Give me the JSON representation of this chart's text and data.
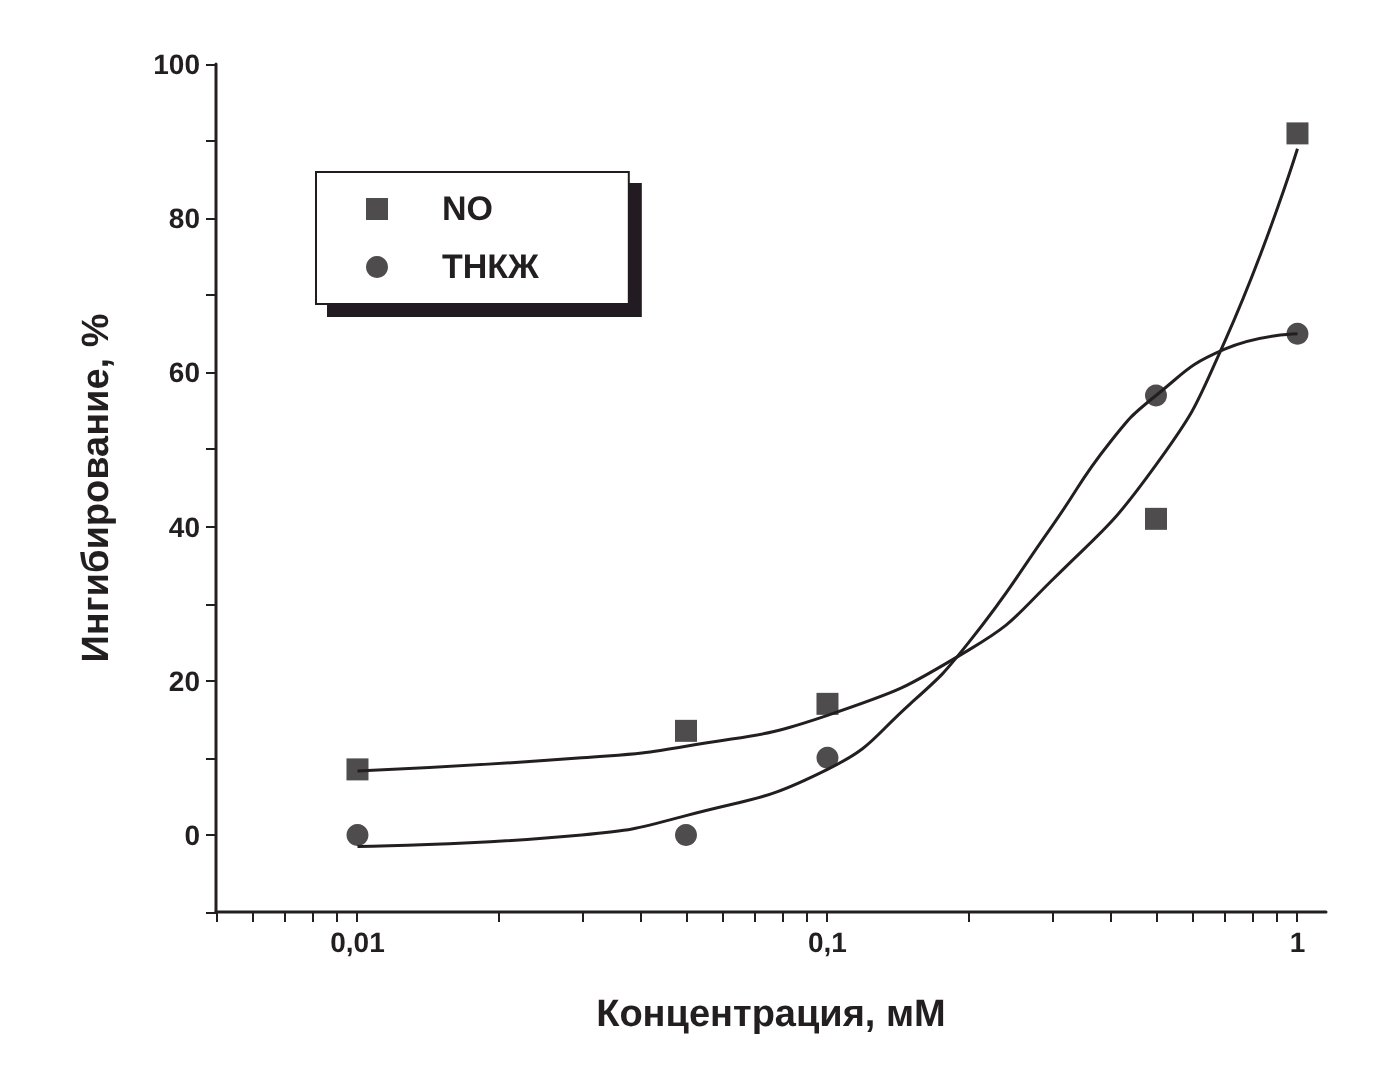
{
  "chart_data": {
    "type": "scatter",
    "xlabel": "Концентрация, мМ",
    "ylabel": "Ингибирование, %",
    "log": "x",
    "legend": "top left",
    "grid": false,
    "xlim": [
      0.005,
      1.15
    ],
    "xticks": [
      {
        "value": 0.005,
        "label": null
      },
      {
        "value": 0.006,
        "label": null
      },
      {
        "value": 0.007,
        "label": null
      },
      {
        "value": 0.008,
        "label": null
      },
      {
        "value": 0.009,
        "label": null
      },
      {
        "value": 0.01,
        "label": "0,01"
      },
      {
        "value": 0.02,
        "label": null
      },
      {
        "value": 0.03,
        "label": null
      },
      {
        "value": 0.04,
        "label": null
      },
      {
        "value": 0.05,
        "label": null
      },
      {
        "value": 0.06,
        "label": null
      },
      {
        "value": 0.07,
        "label": null
      },
      {
        "value": 0.08,
        "label": null
      },
      {
        "value": 0.09,
        "label": null
      },
      {
        "value": 0.1,
        "label": "0,1"
      },
      {
        "value": 0.2,
        "label": null
      },
      {
        "value": 0.3,
        "label": null
      },
      {
        "value": 0.4,
        "label": null
      },
      {
        "value": 0.5,
        "label": null
      },
      {
        "value": 0.6,
        "label": null
      },
      {
        "value": 0.7,
        "label": null
      },
      {
        "value": 0.8,
        "label": null
      },
      {
        "value": 0.9,
        "label": null
      },
      {
        "value": 1,
        "label": "1"
      }
    ],
    "ylim": [
      -10,
      100
    ],
    "yticks": [
      {
        "value": -10,
        "label": null
      },
      0,
      {
        "value": 10,
        "label": null
      },
      20,
      {
        "value": 30,
        "label": null
      },
      40,
      {
        "value": 50,
        "label": null
      },
      60,
      {
        "value": 70,
        "label": null
      },
      80,
      {
        "value": 90,
        "label": null
      },
      100
    ],
    "series": [
      {
        "name": "NO",
        "marker": "square",
        "color": "#231f20",
        "x": [
          0.01,
          0.05,
          0.1,
          0.5,
          1
        ],
        "values": [
          8.5,
          13.5,
          17,
          41,
          91
        ]
      },
      {
        "name": "ТНКЖ",
        "marker": "circle",
        "color": "#231f20",
        "x": [
          0.01,
          0.05,
          0.1,
          0.5,
          1
        ],
        "values": [
          0,
          0,
          10,
          57,
          65
        ]
      },
      {
        "type": "line",
        "marker": "none",
        "line_style": "solid",
        "color": "#231f20",
        "x": [
          0.01,
          0.03,
          0.05,
          0.1,
          0.2,
          0.3,
          0.5,
          0.7,
          1
        ],
        "values": [
          8.3,
          10,
          11.5,
          15.5,
          24,
          33,
          48,
          64,
          89
        ]
      },
      {
        "type": "line",
        "marker": "none",
        "line_style": "solid",
        "color": "#231f20",
        "x": [
          0.01,
          0.03,
          0.05,
          0.1,
          0.15,
          0.2,
          0.3,
          0.4,
          0.5,
          0.7,
          1
        ],
        "values": [
          -1.5,
          0,
          2.5,
          8.5,
          17,
          25,
          40,
          51,
          57,
          63,
          65
        ]
      }
    ]
  }
}
